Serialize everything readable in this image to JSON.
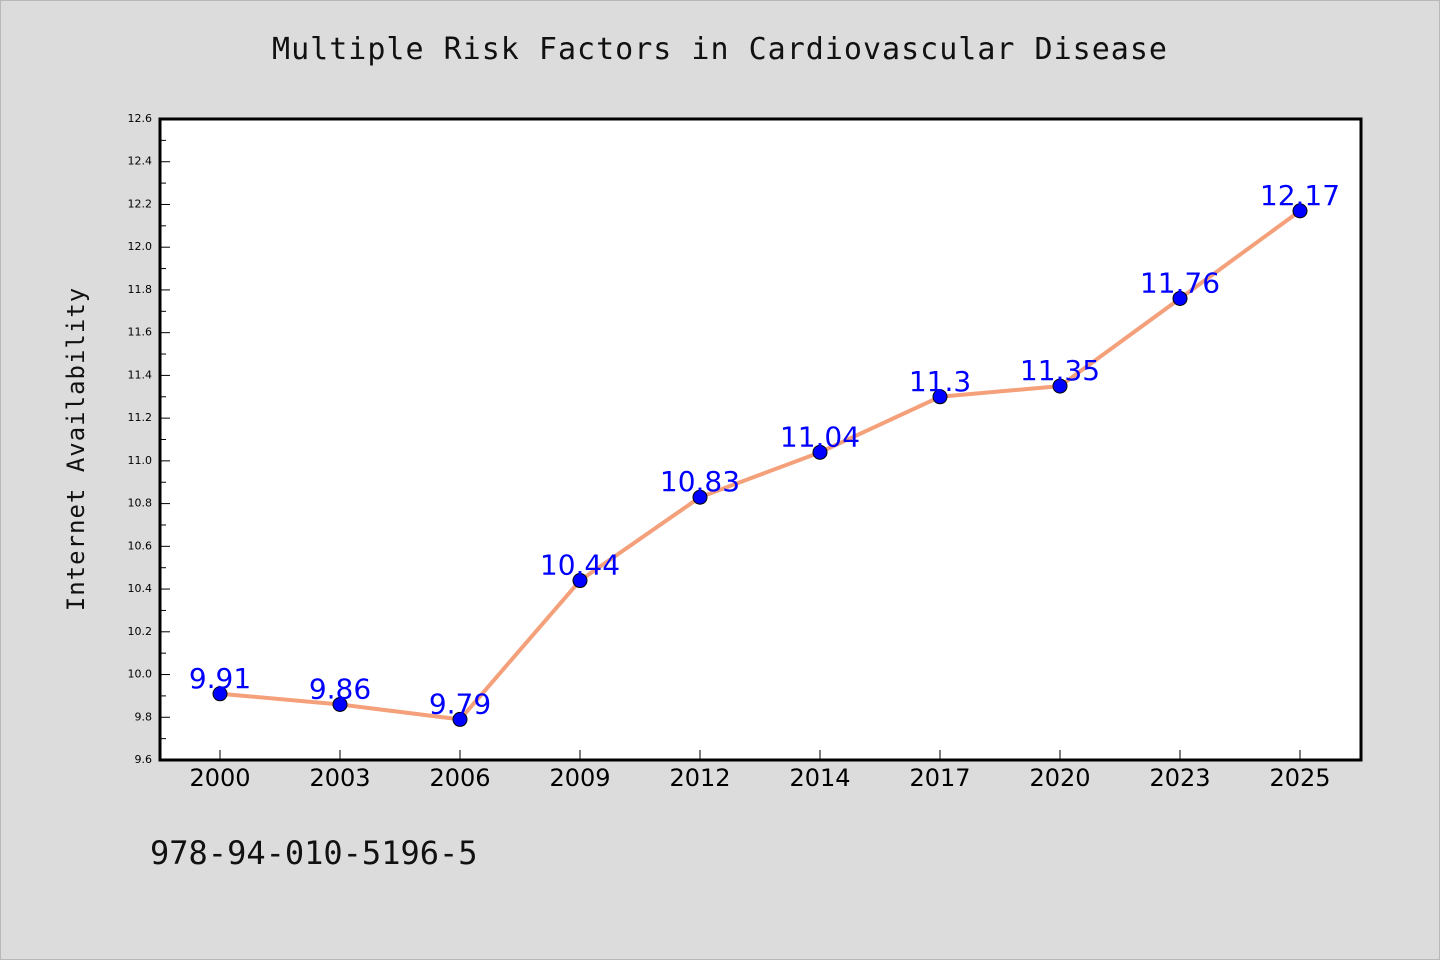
{
  "chart_data": {
    "type": "line",
    "title": "Multiple Risk Factors in Cardiovascular Disease",
    "xlabel": "",
    "ylabel": "Internet Availability",
    "categories": [
      "2000",
      "2003",
      "2006",
      "2009",
      "2012",
      "2014",
      "2017",
      "2020",
      "2023",
      "2025"
    ],
    "series": [
      {
        "values": [
          9.91,
          9.86,
          9.79,
          10.44,
          10.83,
          11.04,
          11.3,
          11.35,
          11.76,
          12.17
        ],
        "data_labels": [
          "9.91",
          "9.86",
          "9.79",
          "10.44",
          "10.83",
          "11.04",
          "11.3",
          "11.35",
          "11.76",
          "12.17"
        ]
      }
    ],
    "ylim": [
      9.6,
      12.6
    ],
    "yticks": [
      "9.6",
      "9.8",
      "10.0",
      "10.2",
      "10.4",
      "10.6",
      "10.8",
      "11.0",
      "11.2",
      "11.4",
      "11.6",
      "11.8",
      "12.0",
      "12.2",
      "12.4",
      "12.6"
    ],
    "grid": false,
    "legend": "none",
    "colors": {
      "line": "#f4a07a",
      "marker": "#0000ff",
      "label": "#0000ff",
      "plot_background": "#ffffff",
      "figure_background": "#dcdcdc"
    }
  },
  "footer": {
    "code": "978-94-010-5196-5"
  }
}
